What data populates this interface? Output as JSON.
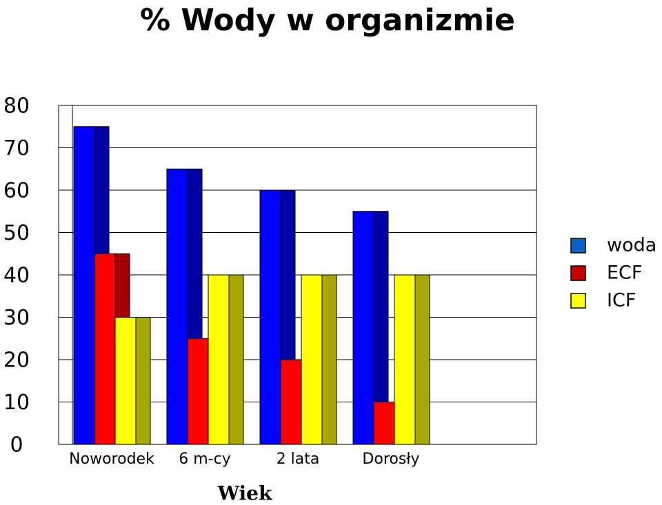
{
  "chart_data": {
    "type": "bar3d",
    "title": "% Wody w organizmie",
    "x_label": "Wiek",
    "categories": [
      "Noworodek",
      "6 m-cy",
      "2 lata",
      "Dorosły"
    ],
    "series": [
      {
        "name": "woda",
        "color": "#0000ff",
        "side_color": "#0000a8",
        "legend_color": "#0a64c8",
        "values": [
          75,
          65,
          60,
          55
        ]
      },
      {
        "name": "ECF",
        "color": "#ff0000",
        "side_color": "#a80000",
        "legend_color": "#c80000",
        "values": [
          45,
          25,
          20,
          10
        ]
      },
      {
        "name": "ICF",
        "color": "#ffff00",
        "side_color": "#a8a800",
        "legend_color": "#ffff00",
        "values": [
          30,
          40,
          40,
          40
        ]
      }
    ],
    "ylim": [
      0,
      80
    ],
    "yticks": [
      0,
      10,
      20,
      30,
      40,
      50,
      60,
      70,
      80
    ],
    "grid": true,
    "legend": "right"
  }
}
